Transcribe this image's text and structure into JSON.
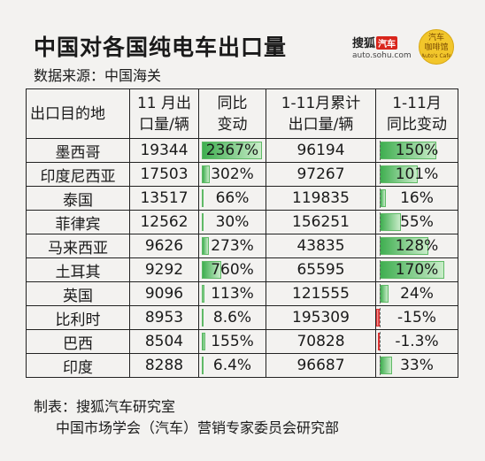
{
  "header": {
    "title": "中国对各国纯电车出口量",
    "source": "数据来源：中国海关"
  },
  "logos": {
    "sohu_name": "搜狐",
    "sohu_badge": "汽车",
    "sohu_url": "auto.sohu.com",
    "circle_line1": "汽车",
    "circle_line2": "咖啡馆",
    "circle_line3": "Auto's Cafe"
  },
  "table": {
    "columns": [
      {
        "key": "country",
        "label": "出口目的地"
      },
      {
        "key": "nov_volume",
        "label": "11 月出口量/辆"
      },
      {
        "key": "nov_yoy",
        "label": "同比变动"
      },
      {
        "key": "ytd_volume",
        "label": "1-11月累计出口量/辆"
      },
      {
        "key": "ytd_yoy",
        "label": "1-11月同比变动"
      }
    ],
    "header_lines": [
      [
        "出口目的地"
      ],
      [
        "11 月出",
        "口量/辆"
      ],
      [
        "同比",
        "变动"
      ],
      [
        "1-11月累计",
        "出口量/辆"
      ],
      [
        "1-11月",
        "同比变动"
      ]
    ],
    "rows": [
      {
        "country": "墨西哥",
        "nov_volume": "19344",
        "nov_yoy": "2367%",
        "nov_yoy_value": 2367,
        "ytd_volume": "96194",
        "ytd_yoy": "150%",
        "ytd_yoy_value": 150
      },
      {
        "country": "印度尼西亚",
        "nov_volume": "17503",
        "nov_yoy": "302%",
        "nov_yoy_value": 302,
        "ytd_volume": "97267",
        "ytd_yoy": "101%",
        "ytd_yoy_value": 101
      },
      {
        "country": "泰国",
        "nov_volume": "13517",
        "nov_yoy": "66%",
        "nov_yoy_value": 66,
        "ytd_volume": "119835",
        "ytd_yoy": "16%",
        "ytd_yoy_value": 16
      },
      {
        "country": "菲律宾",
        "nov_volume": "12562",
        "nov_yoy": "30%",
        "nov_yoy_value": 30,
        "ytd_volume": "156251",
        "ytd_yoy": "55%",
        "ytd_yoy_value": 55
      },
      {
        "country": "马来西亚",
        "nov_volume": "9626",
        "nov_yoy": "273%",
        "nov_yoy_value": 273,
        "ytd_volume": "43835",
        "ytd_yoy": "128%",
        "ytd_yoy_value": 128
      },
      {
        "country": "土耳其",
        "nov_volume": "9292",
        "nov_yoy": "760%",
        "nov_yoy_value": 760,
        "ytd_volume": "65595",
        "ytd_yoy": "170%",
        "ytd_yoy_value": 170
      },
      {
        "country": "英国",
        "nov_volume": "9096",
        "nov_yoy": "113%",
        "nov_yoy_value": 113,
        "ytd_volume": "121555",
        "ytd_yoy": "24%",
        "ytd_yoy_value": 24
      },
      {
        "country": "比利时",
        "nov_volume": "8953",
        "nov_yoy": "8.6%",
        "nov_yoy_value": 8.6,
        "ytd_volume": "195309",
        "ytd_yoy": "-15%",
        "ytd_yoy_value": -15
      },
      {
        "country": "巴西",
        "nov_volume": "8504",
        "nov_yoy": "155%",
        "nov_yoy_value": 155,
        "ytd_volume": "70828",
        "ytd_yoy": "-1.3%",
        "ytd_yoy_value": -1.3
      },
      {
        "country": "印度",
        "nov_volume": "8288",
        "nov_yoy": "6.4%",
        "nov_yoy_value": 6.4,
        "ytd_volume": "96687",
        "ytd_yoy": "33%",
        "ytd_yoy_value": 33
      }
    ]
  },
  "footer": {
    "made_by": "制表：搜狐汽车研究室",
    "partner": "中国市场学会（汽车）营销专家委员会研究部"
  },
  "colors": {
    "positive_bar": "#3fae50",
    "negative_bar": "#e03030",
    "background": "#f3f2f0"
  }
}
